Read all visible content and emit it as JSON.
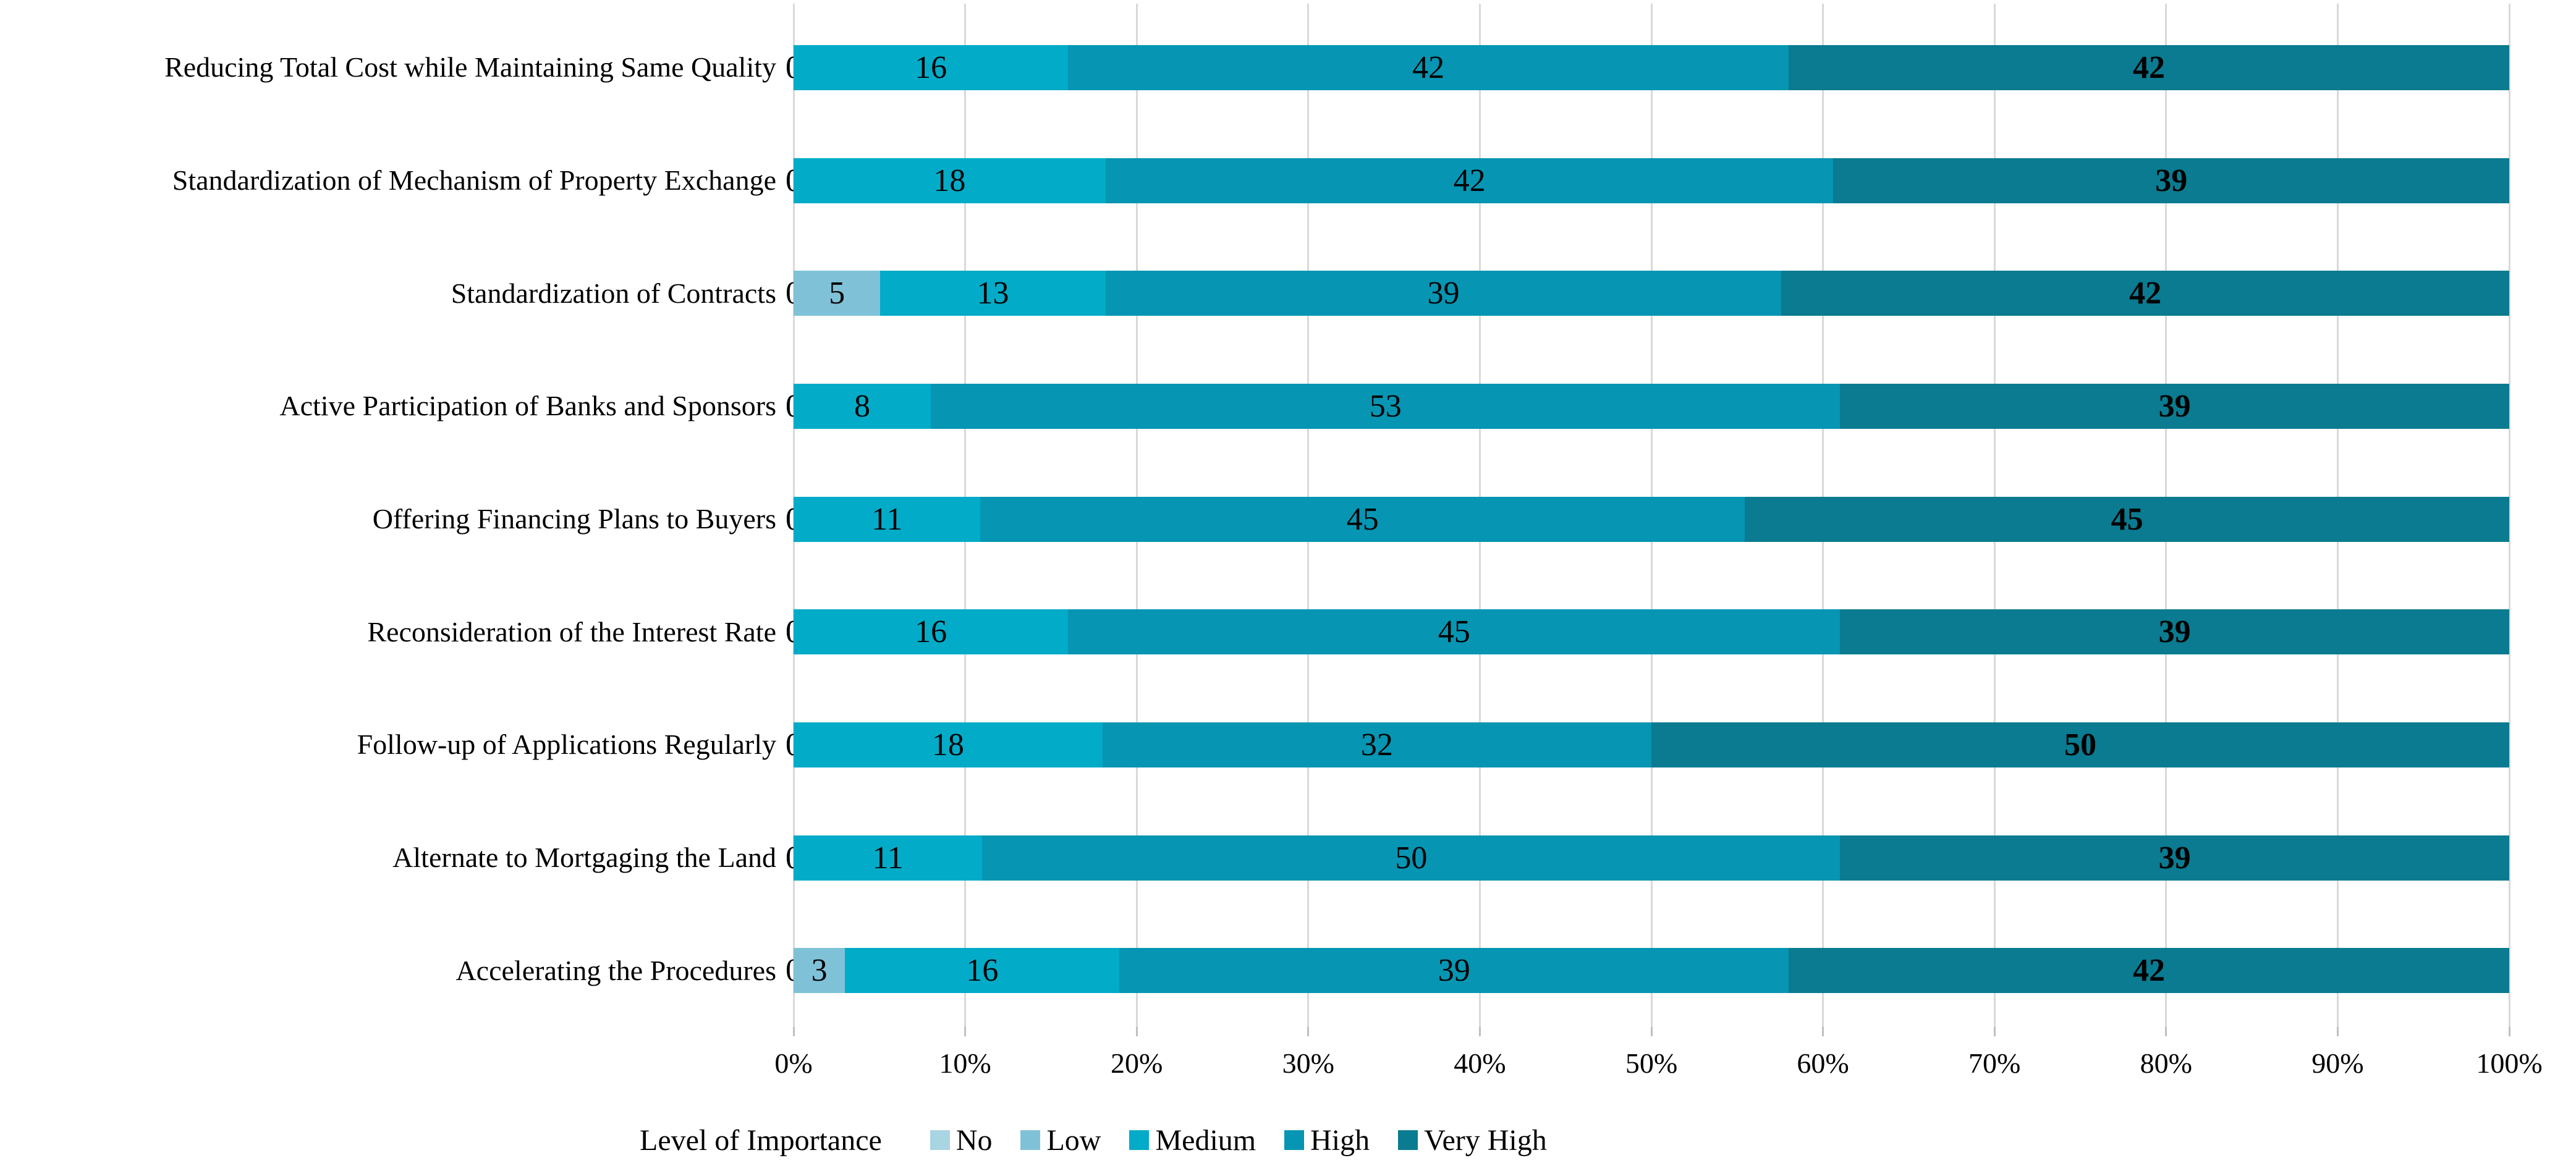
{
  "chart_data": {
    "type": "bar",
    "variant": "horizontal-stacked-100",
    "title": "",
    "xlabel": "",
    "ylabel": "",
    "legend_title": "Level of Importance",
    "legend_position": "bottom",
    "grid": "vertical-only",
    "x_axis_range_pct": [
      0,
      100
    ],
    "x_ticks": [
      "0%",
      "10%",
      "20%",
      "30%",
      "40%",
      "50%",
      "60%",
      "70%",
      "80%",
      "90%",
      "100%"
    ],
    "categories": [
      "Reducing Total Cost while Maintaining Same Quality",
      "Standardization of Mechanism of Property Exchange",
      "Standardization of Contracts",
      "Active Participation of Banks and Sponsors",
      "Offering Financing Plans to Buyers",
      "Reconsideration of the Interest Rate",
      "Follow-up of Applications Regularly",
      "Alternate to Mortgaging the Land",
      "Accelerating the Procedures"
    ],
    "series": [
      {
        "name": "No",
        "color": "#a9d4e2",
        "bold_labels": false,
        "values": [
          0,
          0,
          0,
          0,
          0,
          0,
          0,
          0,
          0
        ]
      },
      {
        "name": "Low",
        "color": "#7fc2d8",
        "bold_labels": false,
        "values": [
          0,
          0,
          5,
          0,
          0,
          0,
          0,
          0,
          3
        ]
      },
      {
        "name": "Medium",
        "color": "#02abc8",
        "bold_labels": false,
        "values": [
          16,
          18,
          13,
          8,
          11,
          16,
          18,
          11,
          16
        ]
      },
      {
        "name": "High",
        "color": "#0695b2",
        "bold_labels": false,
        "values": [
          42,
          42,
          39,
          53,
          45,
          45,
          32,
          50,
          39
        ]
      },
      {
        "name": "Very High",
        "color": "#0a7b90",
        "bold_labels": true,
        "values": [
          42,
          39,
          42,
          39,
          45,
          39,
          50,
          39,
          42
        ]
      }
    ],
    "colors": {
      "gridline": "#d9d9d9",
      "tick": "#bfbfbf",
      "text": "#000000",
      "background": "#ffffff"
    }
  }
}
